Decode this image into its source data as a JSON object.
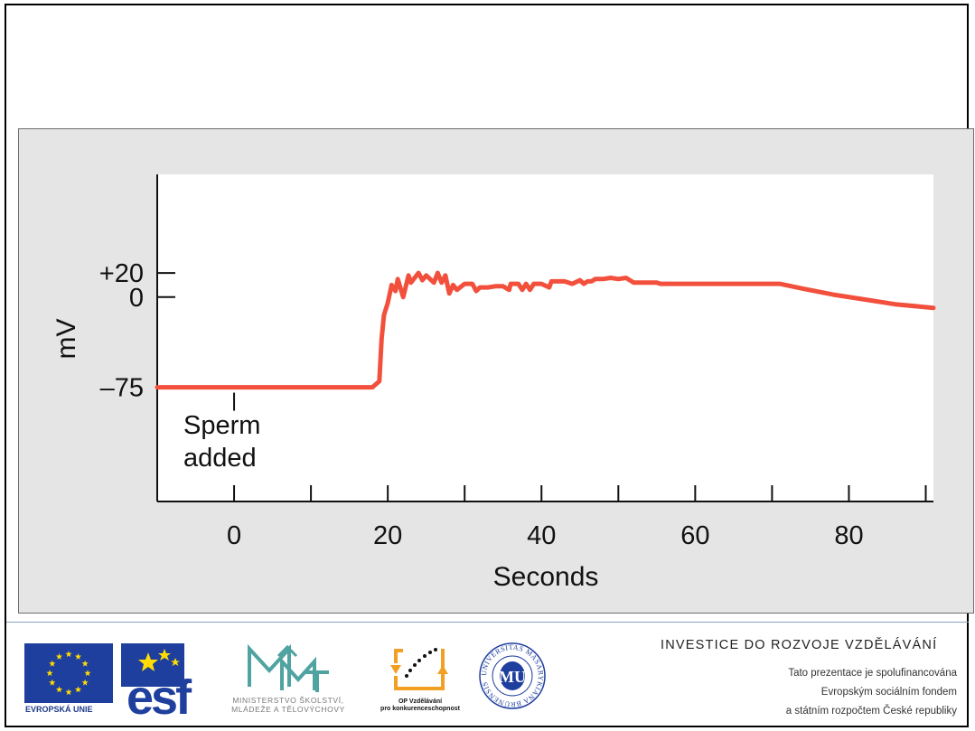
{
  "chart_data": {
    "type": "line",
    "xlabel": "Seconds",
    "ylabel": "mV",
    "x_ticks": [
      0,
      20,
      40,
      60,
      80
    ],
    "y_ticks": [
      "+20",
      "0",
      "–75"
    ],
    "y_tick_values": [
      20,
      0,
      -75
    ],
    "xlim": [
      -10,
      91
    ],
    "ylim": [
      -170,
      102
    ],
    "grid": false,
    "annotation": {
      "line1": "Sperm",
      "line2": "added",
      "x": 0
    },
    "series": [
      {
        "color": "#f2503c",
        "x": [
          -10,
          18,
          18.9,
          19.2,
          19.5,
          20,
          20.5,
          21,
          21.3,
          22,
          22.7,
          23,
          24,
          24.5,
          25,
          26,
          26.5,
          27,
          27.5,
          28,
          28.5,
          29,
          30,
          31,
          31.5,
          32,
          33,
          34,
          35,
          35.8,
          36,
          37,
          37.5,
          38,
          38.5,
          39,
          40,
          41,
          41.3,
          42,
          43,
          44,
          45,
          45.5,
          46,
          46.5,
          47,
          48,
          49,
          50,
          51,
          52,
          53,
          55,
          55.5,
          71,
          74,
          78,
          82,
          86,
          91
        ],
        "y": [
          -75,
          -75,
          -70,
          -35,
          -15,
          -5,
          10,
          5,
          15,
          0,
          18,
          12,
          20,
          14,
          18,
          12,
          20,
          12,
          18,
          3,
          10,
          6,
          11,
          11,
          5,
          8,
          8,
          9,
          9,
          6,
          11,
          11,
          6,
          11,
          6,
          11,
          11,
          8,
          13,
          13,
          13,
          11,
          14,
          11,
          13,
          13,
          15,
          15,
          16,
          15,
          16,
          12,
          12,
          12,
          11,
          11,
          7,
          2,
          -2,
          -6,
          -9
        ]
      }
    ]
  },
  "footer": {
    "eu_caption": "EVROPSKÁ UNIE",
    "esf_text": "esf",
    "msmt_caption_line1": "MINISTERSTVO ŠKOLSTVÍ,",
    "msmt_caption_line2": "MLÁDEŽE A TĚLOVÝCHOVY",
    "op_caption_line1": "OP Vzdělávání",
    "op_caption_line2": "pro konkurenceschopnost",
    "mu_ring_text": "UNIVERSITAS MASARYKIANA BRUNENSIS",
    "mu_monogram": "MU",
    "headline": "INVESTICE DO ROZVOJE VZDĚLÁVÁNÍ",
    "cofund_line1": "Tato prezentace je spolufinancována",
    "cofund_line2": "Evropským sociálním fondem",
    "cofund_line3": "a státním rozpočtem České republiky"
  }
}
